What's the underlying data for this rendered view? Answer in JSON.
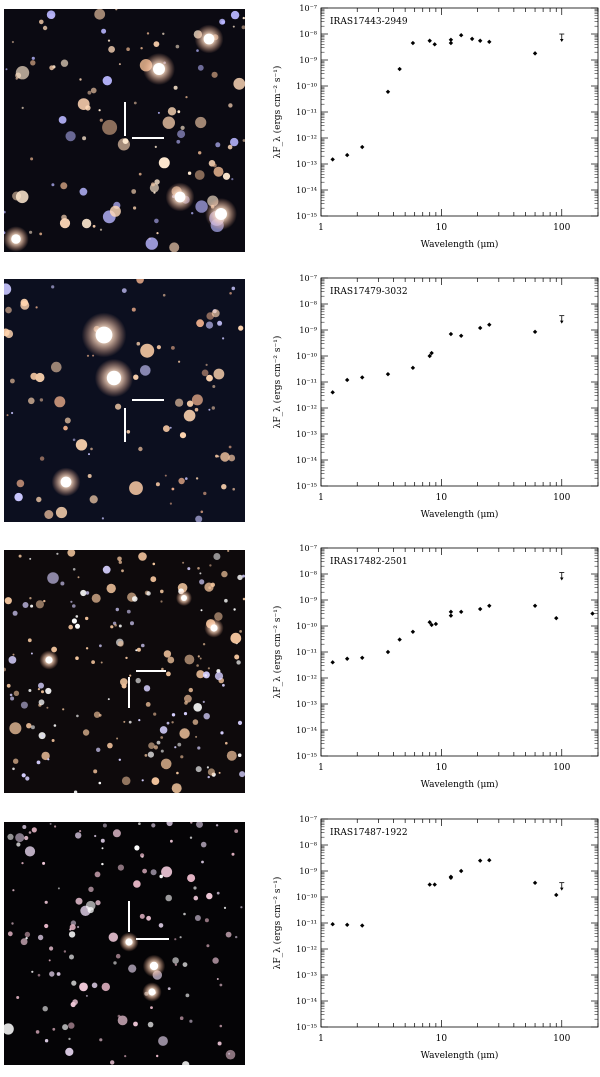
{
  "colors": {
    "marker": "#ffffff",
    "data_point": "#000000",
    "field_background": "#0a0a14"
  },
  "panels": [
    {
      "starfield": {
        "marker_icon": "crosshair-marker-icon"
      },
      "chart_data": {
        "type": "scatter",
        "title": "IRAS17443-2949",
        "xlabel": "Wavelength (μm)",
        "ylabel": "λF_λ (ergs cm⁻² s⁻¹)",
        "xscale": "log",
        "yscale": "log",
        "xlim": [
          1,
          200
        ],
        "ylim": [
          1e-15,
          1e-07
        ],
        "xticks": [
          1,
          10,
          100
        ],
        "xtick_labels": [
          "1",
          "10",
          "100"
        ],
        "yticks": [
          -15,
          -14,
          -13,
          -12,
          -11,
          -10,
          -9,
          -8,
          -7
        ],
        "points": [
          {
            "x": 1.25,
            "y": 1.5e-13
          },
          {
            "x": 1.65,
            "y": 2.2e-13
          },
          {
            "x": 2.2,
            "y": 4.5e-13
          },
          {
            "x": 3.6,
            "y": 6e-11
          },
          {
            "x": 4.5,
            "y": 4.5e-10
          },
          {
            "x": 5.8,
            "y": 4.5e-09
          },
          {
            "x": 8.0,
            "y": 5.5e-09
          },
          {
            "x": 8.8,
            "y": 4e-09
          },
          {
            "x": 12,
            "y": 6e-09
          },
          {
            "x": 12,
            "y": 4.5e-09
          },
          {
            "x": 14.6,
            "y": 9e-09
          },
          {
            "x": 18,
            "y": 6.5e-09
          },
          {
            "x": 21,
            "y": 5.5e-09
          },
          {
            "x": 25,
            "y": 5e-09
          },
          {
            "x": 60,
            "y": 1.8e-09
          }
        ],
        "upper_limits": [
          {
            "x": 100,
            "y": 7e-09
          }
        ]
      }
    },
    {
      "starfield": {
        "marker_icon": "crosshair-marker-icon"
      },
      "chart_data": {
        "type": "scatter",
        "title": "IRAS17479-3032",
        "xlabel": "Wavelength (μm)",
        "ylabel": "λF_λ (ergs cm⁻² s⁻¹)",
        "xscale": "log",
        "yscale": "log",
        "xlim": [
          1,
          200
        ],
        "ylim": [
          1e-15,
          1e-07
        ],
        "xticks": [
          1,
          10,
          100
        ],
        "xtick_labels": [
          "1",
          "10",
          "100"
        ],
        "yticks": [
          -15,
          -14,
          -13,
          -12,
          -11,
          -10,
          -9,
          -8,
          -7
        ],
        "points": [
          {
            "x": 1.25,
            "y": 4e-12
          },
          {
            "x": 1.65,
            "y": 1.2e-11
          },
          {
            "x": 2.2,
            "y": 1.5e-11
          },
          {
            "x": 3.6,
            "y": 2e-11
          },
          {
            "x": 5.8,
            "y": 3.5e-11
          },
          {
            "x": 8.0,
            "y": 1e-10
          },
          {
            "x": 8.3,
            "y": 1.3e-10
          },
          {
            "x": 12,
            "y": 7e-10
          },
          {
            "x": 14.6,
            "y": 6e-10
          },
          {
            "x": 21,
            "y": 1.2e-09
          },
          {
            "x": 25,
            "y": 1.6e-09
          },
          {
            "x": 60,
            "y": 8.5e-10
          }
        ],
        "upper_limits": [
          {
            "x": 100,
            "y": 2.5e-09
          }
        ]
      }
    },
    {
      "starfield": {
        "marker_icon": "crosshair-marker-icon"
      },
      "chart_data": {
        "type": "scatter",
        "title": "IRAS17482-2501",
        "xlabel": "Wavelength (μm)",
        "ylabel": "λF_λ (ergs cm⁻² s⁻¹)",
        "xscale": "log",
        "yscale": "log",
        "xlim": [
          1,
          200
        ],
        "ylim": [
          1e-15,
          1e-07
        ],
        "xticks": [
          1,
          10,
          100
        ],
        "xtick_labels": [
          "1",
          "10",
          "100"
        ],
        "yticks": [
          -15,
          -14,
          -13,
          -12,
          -11,
          -10,
          -9,
          -8,
          -7
        ],
        "points": [
          {
            "x": 1.25,
            "y": 4e-12
          },
          {
            "x": 1.65,
            "y": 5.5e-12
          },
          {
            "x": 2.2,
            "y": 6e-12
          },
          {
            "x": 3.6,
            "y": 1e-11
          },
          {
            "x": 4.5,
            "y": 3e-11
          },
          {
            "x": 5.8,
            "y": 6e-11
          },
          {
            "x": 8.0,
            "y": 1.4e-10
          },
          {
            "x": 8.3,
            "y": 1.1e-10
          },
          {
            "x": 9.0,
            "y": 1.2e-10
          },
          {
            "x": 12,
            "y": 3.5e-10
          },
          {
            "x": 12,
            "y": 2.5e-10
          },
          {
            "x": 14.6,
            "y": 3.5e-10
          },
          {
            "x": 21,
            "y": 4.5e-10
          },
          {
            "x": 25,
            "y": 6e-10
          },
          {
            "x": 60,
            "y": 6e-10
          },
          {
            "x": 90,
            "y": 2e-10
          },
          {
            "x": 180,
            "y": 3e-10
          }
        ],
        "upper_limits": [
          {
            "x": 100,
            "y": 8e-09
          }
        ]
      }
    },
    {
      "starfield": {
        "marker_icon": "crosshair-marker-icon"
      },
      "chart_data": {
        "type": "scatter",
        "title": "IRAS17487-1922",
        "xlabel": "Wavelength (μm)",
        "ylabel": "λF_λ (ergs cm⁻² s⁻¹)",
        "xscale": "log",
        "yscale": "log",
        "xlim": [
          1,
          200
        ],
        "ylim": [
          1e-15,
          1e-07
        ],
        "xticks": [
          1,
          10,
          100
        ],
        "xtick_labels": [
          "1",
          "10",
          "100"
        ],
        "yticks": [
          -15,
          -14,
          -13,
          -12,
          -11,
          -10,
          -9,
          -8,
          -7
        ],
        "points": [
          {
            "x": 1.25,
            "y": 9e-12
          },
          {
            "x": 1.65,
            "y": 8.5e-12
          },
          {
            "x": 2.2,
            "y": 8e-12
          },
          {
            "x": 8.0,
            "y": 3e-10
          },
          {
            "x": 8.8,
            "y": 3e-10
          },
          {
            "x": 12,
            "y": 5.5e-10
          },
          {
            "x": 12,
            "y": 6e-10
          },
          {
            "x": 14.6,
            "y": 1e-09
          },
          {
            "x": 21,
            "y": 2.5e-09
          },
          {
            "x": 25,
            "y": 2.6e-09
          },
          {
            "x": 60,
            "y": 3.5e-10
          },
          {
            "x": 90,
            "y": 1.2e-10
          }
        ],
        "upper_limits": [
          {
            "x": 100,
            "y": 2.5e-10
          }
        ]
      }
    }
  ]
}
